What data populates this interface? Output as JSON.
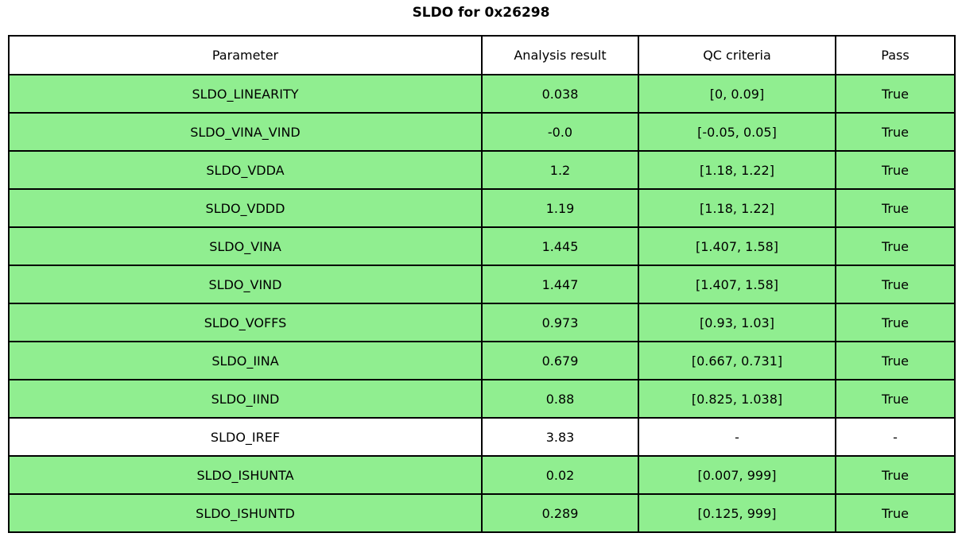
{
  "chart_data": {
    "type": "table",
    "title": "SLDO for 0x26298",
    "columns": [
      "Parameter",
      "Analysis result",
      "QC criteria",
      "Pass"
    ],
    "rows": [
      {
        "parameter": "SLDO_LINEARITY",
        "analysis_result": "0.038",
        "qc_criteria": "[0, 0.09]",
        "pass": "True",
        "highlight": true
      },
      {
        "parameter": "SLDO_VINA_VIND",
        "analysis_result": "-0.0",
        "qc_criteria": "[-0.05, 0.05]",
        "pass": "True",
        "highlight": true
      },
      {
        "parameter": "SLDO_VDDA",
        "analysis_result": "1.2",
        "qc_criteria": "[1.18, 1.22]",
        "pass": "True",
        "highlight": true
      },
      {
        "parameter": "SLDO_VDDD",
        "analysis_result": "1.19",
        "qc_criteria": "[1.18, 1.22]",
        "pass": "True",
        "highlight": true
      },
      {
        "parameter": "SLDO_VINA",
        "analysis_result": "1.445",
        "qc_criteria": "[1.407, 1.58]",
        "pass": "True",
        "highlight": true
      },
      {
        "parameter": "SLDO_VIND",
        "analysis_result": "1.447",
        "qc_criteria": "[1.407, 1.58]",
        "pass": "True",
        "highlight": true
      },
      {
        "parameter": "SLDO_VOFFS",
        "analysis_result": "0.973",
        "qc_criteria": "[0.93, 1.03]",
        "pass": "True",
        "highlight": true
      },
      {
        "parameter": "SLDO_IINA",
        "analysis_result": "0.679",
        "qc_criteria": "[0.667, 0.731]",
        "pass": "True",
        "highlight": true
      },
      {
        "parameter": "SLDO_IIND",
        "analysis_result": "0.88",
        "qc_criteria": "[0.825, 1.038]",
        "pass": "True",
        "highlight": true
      },
      {
        "parameter": "SLDO_IREF",
        "analysis_result": "3.83",
        "qc_criteria": "-",
        "pass": "-",
        "highlight": false
      },
      {
        "parameter": "SLDO_ISHUNTA",
        "analysis_result": "0.02",
        "qc_criteria": "[0.007, 999]",
        "pass": "True",
        "highlight": true
      },
      {
        "parameter": "SLDO_ISHUNTD",
        "analysis_result": "0.289",
        "qc_criteria": "[0.125, 999]",
        "pass": "True",
        "highlight": true
      }
    ]
  },
  "colors": {
    "pass_green": "#90ee90",
    "no_criteria_white": "#ffffff",
    "border_black": "#000000"
  }
}
